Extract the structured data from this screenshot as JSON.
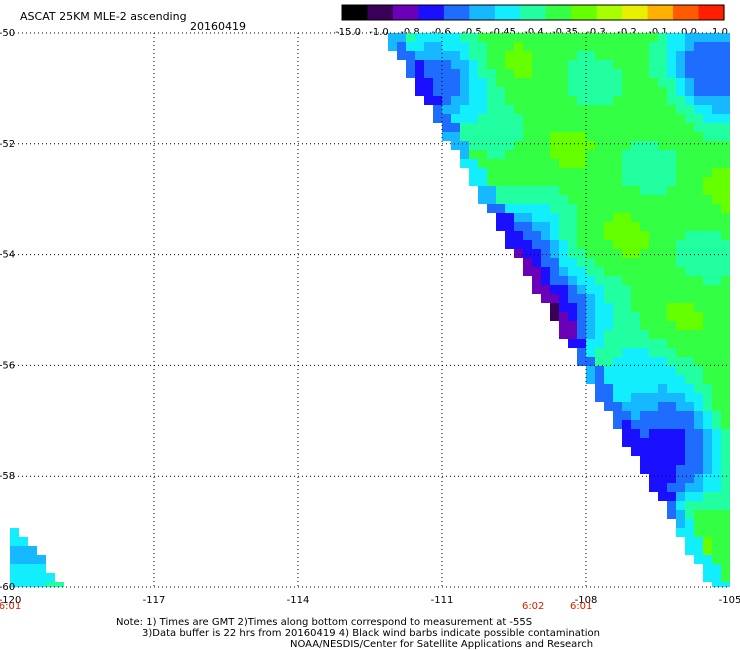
{
  "header": {
    "title": "ASCAT 25KM MLE-2 ascending",
    "date": "20160419"
  },
  "colorbar": {
    "labels": [
      "-15.0",
      "-1.0",
      "-0.8",
      "-0.6",
      "-0.5",
      "-0.45",
      "-0.4",
      "-0.35",
      "-0.3",
      "-0.2",
      "-0.1",
      "0.0",
      "1.0"
    ],
    "colors": [
      "#000000",
      "#3a0058",
      "#6a00b8",
      "#1a10ff",
      "#1f6dff",
      "#16b8ff",
      "#13eefd",
      "#22ffa0",
      "#33ff44",
      "#66ff00",
      "#a8ff00",
      "#e8f000",
      "#ffb000",
      "#ff5a00",
      "#ff1e00"
    ]
  },
  "footer": {
    "line1": "Note: 1) Times are GMT 2)Times along bottom correspond to measurement at -55S",
    "line2": "3)Data buffer is 22 hrs from 20160419 4) Black wind barbs indicate possible contamination",
    "line3": "NOAA/NESDIS/Center for Satellite Applications and Research"
  },
  "chart_data": {
    "type": "heatmap",
    "title": "ASCAT 25KM MLE-2 ascending",
    "subtitle": "20160419",
    "xlabel": "",
    "ylabel": "",
    "xlim": [
      -120,
      -105
    ],
    "ylim": [
      -60,
      -50
    ],
    "x_ticks": [
      -120,
      -117,
      -114,
      -111,
      -108,
      -105
    ],
    "x_tick_labels": [
      "-120",
      "-117",
      "-114",
      "-111",
      "-108",
      "-105"
    ],
    "y_ticks": [
      -50,
      -52,
      -54,
      -56,
      -58,
      -60
    ],
    "y_tick_labels": [
      "-50",
      "-52",
      "-54",
      "-56",
      "-58",
      "-60"
    ],
    "grid": true,
    "time_labels": [
      {
        "lon": -120,
        "text": "6:01"
      },
      {
        "lon": -109.1,
        "text": "6:02"
      },
      {
        "lon": -108.1,
        "text": "6:01"
      }
    ],
    "swath_edge": [
      [
        -112.2,
        -50.0
      ],
      [
        -105.4,
        -60.0
      ]
    ],
    "left_swath_edge": [
      [
        -120.0,
        -58.9
      ],
      [
        -118.8,
        -60.0
      ]
    ],
    "background_value": -0.33,
    "features": [
      {
        "lon": -109.8,
        "lat": -54.2,
        "value": -0.95
      },
      {
        "lon": -109.1,
        "lat": -55.3,
        "value": -1.2
      },
      {
        "lon": -106.7,
        "lat": -57.8,
        "value": -0.7
      },
      {
        "lon": -106.4,
        "lat": -57.3,
        "value": -0.65
      },
      {
        "lon": -105.3,
        "lat": -50.7,
        "value": -0.6
      },
      {
        "lon": -111.1,
        "lat": -50.9,
        "value": -0.55
      },
      {
        "lon": -110.3,
        "lat": -54.0,
        "value": -0.5
      },
      {
        "lon": -107.0,
        "lat": -56.3,
        "value": -0.45
      },
      {
        "lon": -119.6,
        "lat": -59.4,
        "value": -0.42
      }
    ]
  }
}
